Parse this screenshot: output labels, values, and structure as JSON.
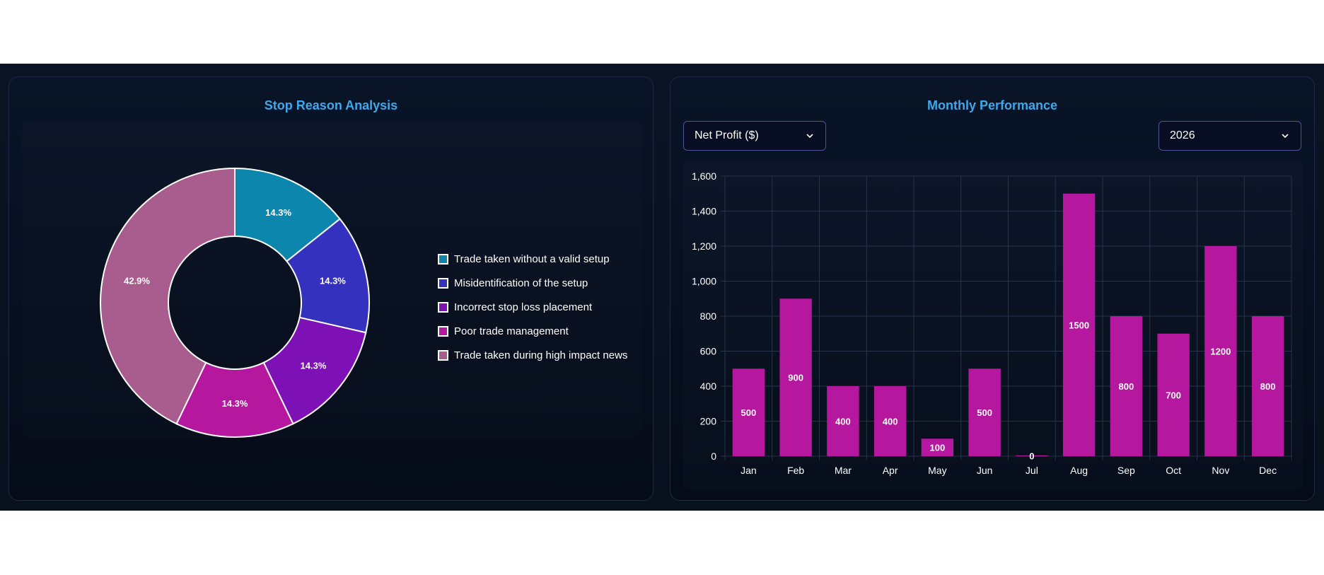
{
  "left_card": {
    "title": "Stop Reason Analysis"
  },
  "right_card": {
    "title": "Monthly Performance",
    "metric_select": {
      "value": "Net Profit ($)",
      "icon": "chevron-down-icon"
    },
    "year_select": {
      "value": "2026",
      "icon": "chevron-down-icon"
    }
  },
  "chart_data": [
    {
      "type": "pie",
      "variant": "doughnut",
      "title": "Stop Reason Analysis",
      "labels": [
        "Trade taken without a valid setup",
        "Misidentification of the setup",
        "Incorrect stop loss placement",
        "Poor trade management",
        "Trade taken during high impact news"
      ],
      "values": [
        1,
        1,
        1,
        1,
        3
      ],
      "percent_labels": [
        "14.3%",
        "14.3%",
        "14.3%",
        "14.3%",
        "42.9%"
      ],
      "colors": [
        "#0c86ad",
        "#3431bf",
        "#7e11b5",
        "#b5179e",
        "#a95d8e"
      ],
      "legend": "right"
    },
    {
      "type": "bar",
      "title": "Monthly Performance",
      "categories": [
        "Jan",
        "Feb",
        "Mar",
        "Apr",
        "May",
        "Jun",
        "Jul",
        "Aug",
        "Sep",
        "Oct",
        "Nov",
        "Dec"
      ],
      "values": [
        500,
        900,
        400,
        400,
        100,
        500,
        0,
        1500,
        800,
        700,
        1200,
        800
      ],
      "value_labels": [
        "500",
        "900",
        "400",
        "400",
        "100",
        "500",
        "0",
        "1500",
        "800",
        "700",
        "1200",
        "800"
      ],
      "ylim": [
        0,
        1600
      ],
      "yticks": [
        "0",
        "200",
        "400",
        "600",
        "800",
        "1,000",
        "1,200",
        "1,400",
        "1,600"
      ],
      "bar_color": "#b5179e",
      "grid": true
    }
  ]
}
